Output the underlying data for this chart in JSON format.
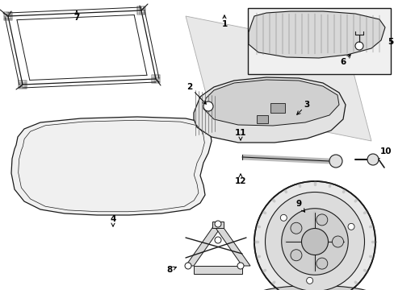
{
  "bg_color": "#ffffff",
  "lc": "#1a1a1a",
  "gray_fill": "#f2f2f2",
  "gray_med": "#e0e0e0",
  "gray_dark": "#c8c8c8",
  "inset_fill": "#ebebeb",
  "fig_w": 4.89,
  "fig_h": 3.6,
  "dpi": 100
}
